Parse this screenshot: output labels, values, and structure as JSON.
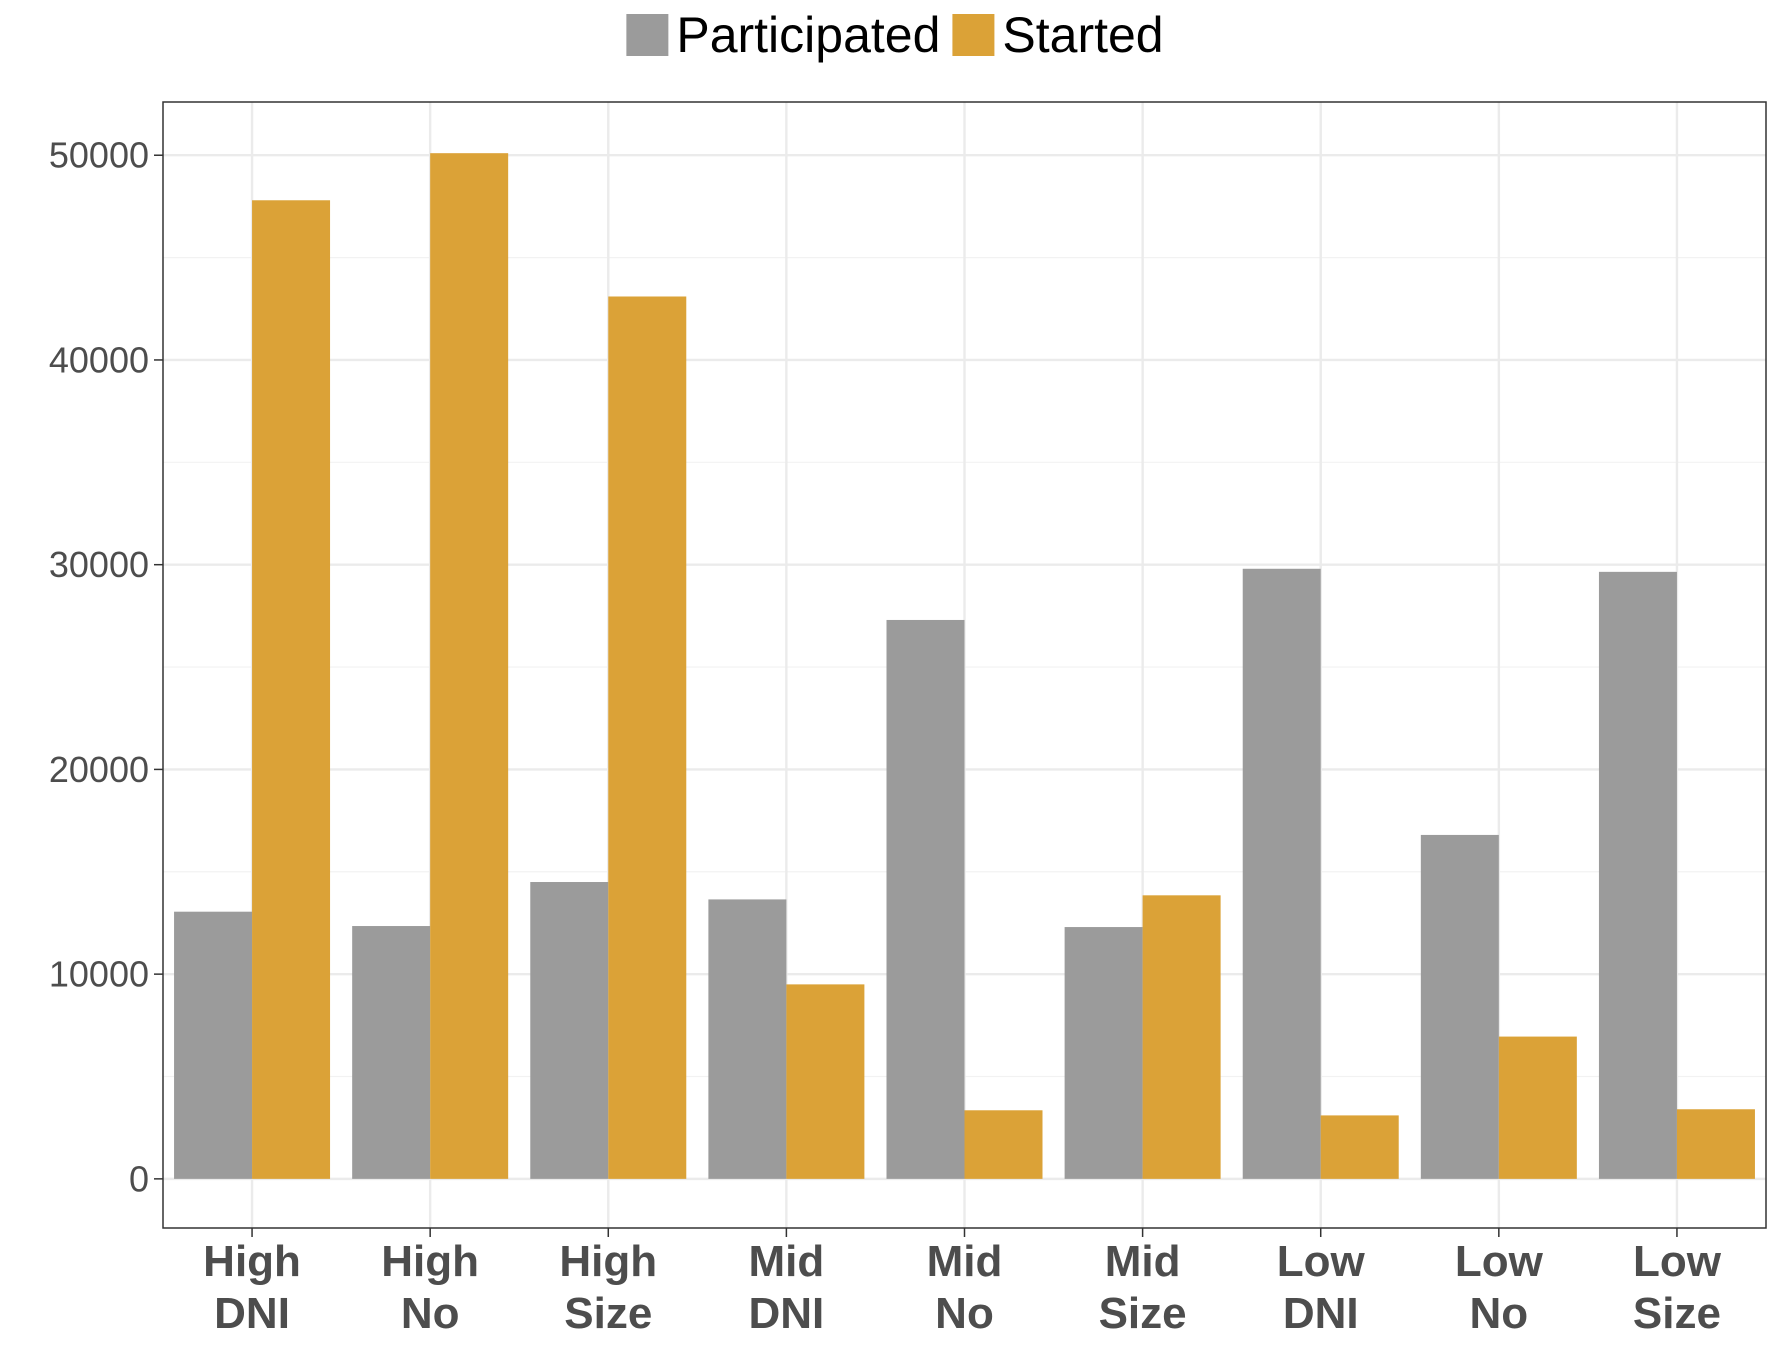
{
  "chart_data": {
    "type": "bar",
    "categories": [
      [
        "High",
        "DNI"
      ],
      [
        "High",
        "No"
      ],
      [
        "High",
        "Size"
      ],
      [
        "Mid",
        "DNI"
      ],
      [
        "Mid",
        "No"
      ],
      [
        "Mid",
        "Size"
      ],
      [
        "Low",
        "DNI"
      ],
      [
        "Low",
        "No"
      ],
      [
        "Low",
        "Size"
      ]
    ],
    "series": [
      {
        "name": "Participated",
        "color": "#9b9b9b",
        "values": [
          13050,
          12350,
          14500,
          13650,
          27300,
          12300,
          29800,
          16800,
          29650
        ]
      },
      {
        "name": "Started",
        "color": "#dba237",
        "values": [
          47800,
          50100,
          43100,
          9500,
          3350,
          13850,
          3100,
          6950,
          3400
        ]
      }
    ],
    "yticks": [
      0,
      10000,
      20000,
      30000,
      40000,
      50000
    ],
    "ylim": [
      -2400,
      52600
    ],
    "grid": true,
    "legend": "top",
    "xlabel": "",
    "ylabel": "",
    "title": ""
  }
}
